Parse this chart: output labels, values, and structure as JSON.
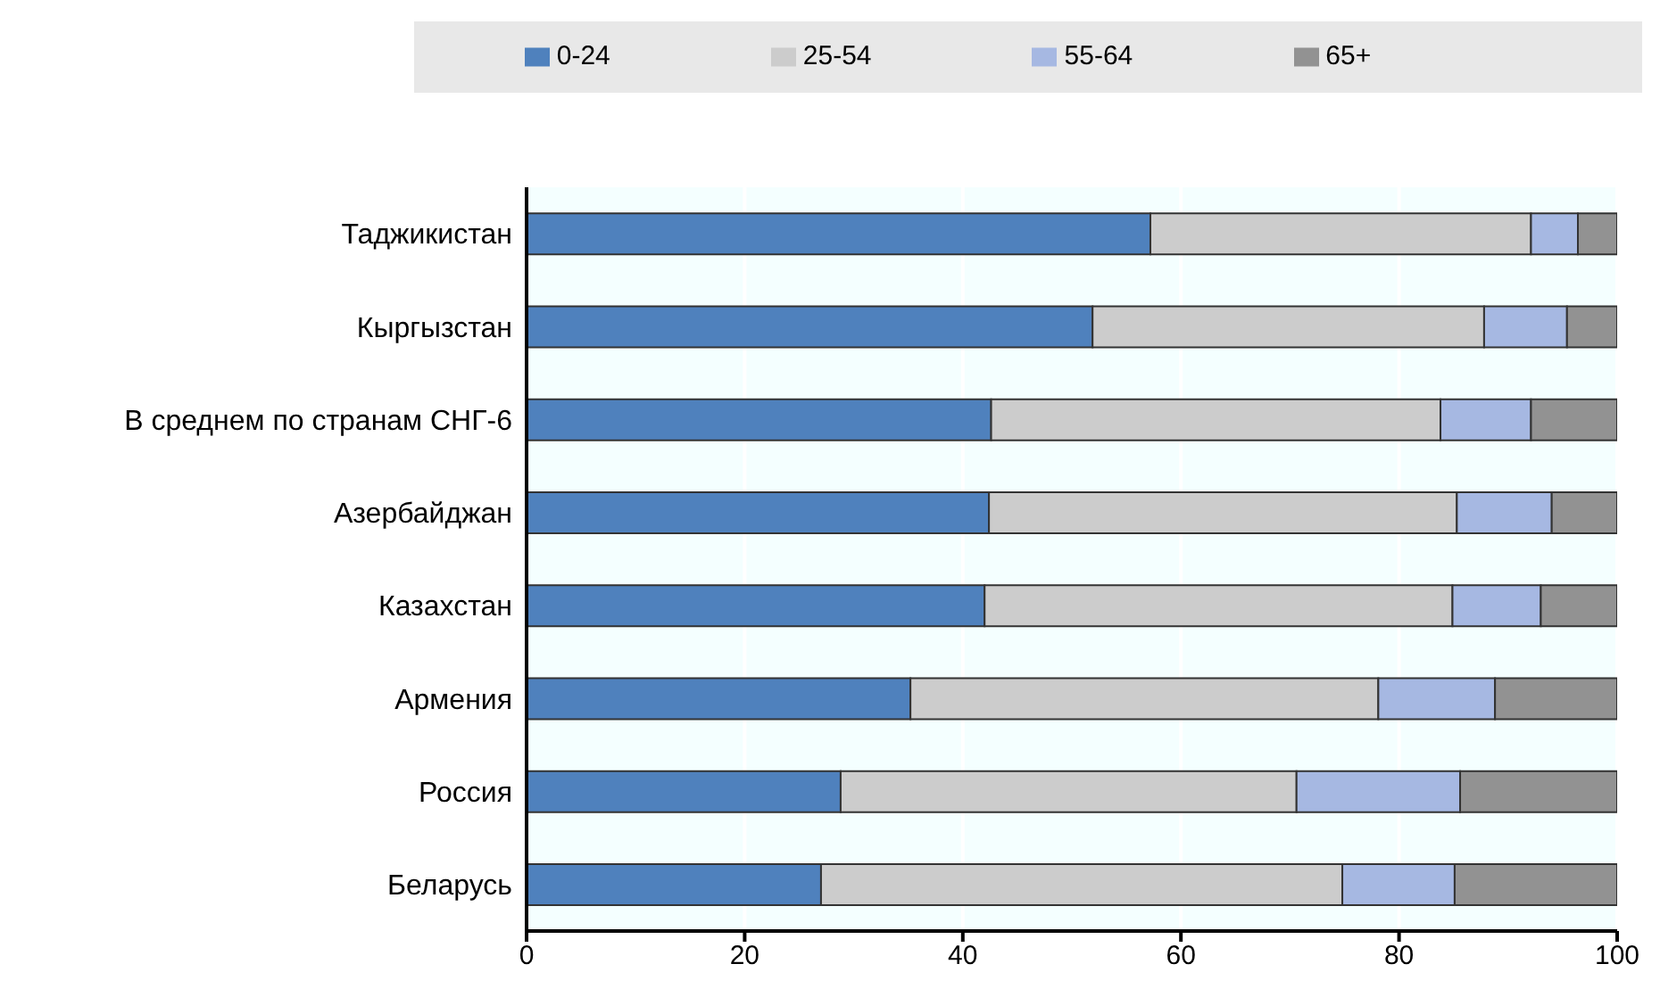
{
  "chart_data": {
    "type": "bar",
    "orientation": "horizontal",
    "stacked": true,
    "categories": [
      "Таджикистан",
      "Кыргызстан",
      "В среднем по странам СНГ-6",
      "Азербайджан",
      "Казахстан",
      "Армения",
      "Россия",
      "Беларусь"
    ],
    "series": [
      {
        "name": "0-24",
        "color": "#4f81bd",
        "values": [
          57.2,
          51.9,
          42.6,
          42.4,
          42.0,
          35.2,
          28.8,
          27.0
        ]
      },
      {
        "name": "25-54",
        "color": "#cccccc",
        "values": [
          34.9,
          35.9,
          41.2,
          42.9,
          42.9,
          42.9,
          41.8,
          47.8
        ]
      },
      {
        "name": "55-64",
        "color": "#a6b8e2",
        "values": [
          4.3,
          7.6,
          8.3,
          8.7,
          8.1,
          10.7,
          15.0,
          10.3
        ]
      },
      {
        "name": "65+",
        "color": "#929292",
        "values": [
          3.6,
          4.6,
          7.9,
          6.0,
          7.0,
          11.2,
          14.4,
          14.9
        ]
      }
    ],
    "xlim": [
      0,
      100
    ],
    "xticks": [
      0,
      20,
      40,
      60,
      80,
      100
    ],
    "grid": "x",
    "legend": "top"
  }
}
